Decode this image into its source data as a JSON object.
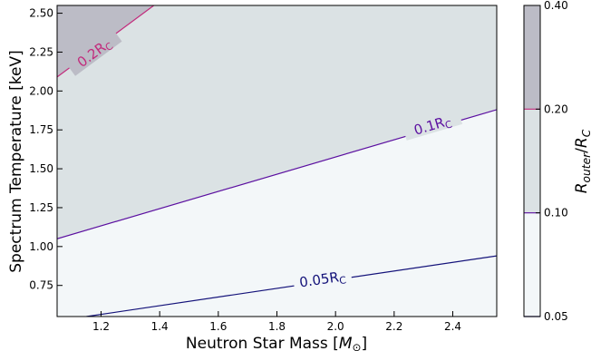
{
  "chart_data": {
    "type": "contour",
    "xlabel": "Neutron Star Mass [M⊙]",
    "ylabel": "Spectrum Temperature [keV]",
    "colorbar_label": "Router/RC",
    "xlim": [
      1.05,
      2.55
    ],
    "ylim": [
      0.55,
      2.55
    ],
    "x_ticks": [
      "1.2",
      "1.4",
      "1.6",
      "1.8",
      "2.0",
      "2.2",
      "2.4"
    ],
    "x_tick_values": [
      1.2,
      1.4,
      1.6,
      1.8,
      2.0,
      2.2,
      2.4
    ],
    "y_ticks": [
      "0.75",
      "1.00",
      "1.25",
      "1.50",
      "1.75",
      "2.00",
      "2.25",
      "2.50"
    ],
    "y_tick_values": [
      0.75,
      1.0,
      1.25,
      1.5,
      1.75,
      2.0,
      2.25,
      2.5
    ],
    "colorbar_ticks": [
      "0.05",
      "0.10",
      "0.20",
      "0.40"
    ],
    "levels": [
      0.05,
      0.1,
      0.2,
      0.4
    ],
    "fill_colors": [
      "#f3f7f9",
      "#dbe2e4",
      "#bcbcc6"
    ],
    "contours": [
      {
        "label": "0.05R",
        "label_sub": "C",
        "level": 0.05,
        "color": "#14137a",
        "x": [
          1.15,
          2.55
        ],
        "y": [
          0.55,
          0.94
        ],
        "label_x": 1.955,
        "label_y": 0.795
      },
      {
        "label": "0.1R",
        "label_sub": "C",
        "level": 0.1,
        "color": "#5b0fa0",
        "x": [
          1.05,
          2.55
        ],
        "y": [
          1.05,
          1.88
        ],
        "label_x": 2.33,
        "label_y": 1.785
      },
      {
        "label": "0.2R",
        "label_sub": "C",
        "level": 0.2,
        "color": "#c22b7c",
        "x": [
          1.05,
          1.38
        ],
        "y": [
          2.09,
          2.55
        ],
        "label_x": 1.175,
        "label_y": 2.25
      }
    ]
  }
}
